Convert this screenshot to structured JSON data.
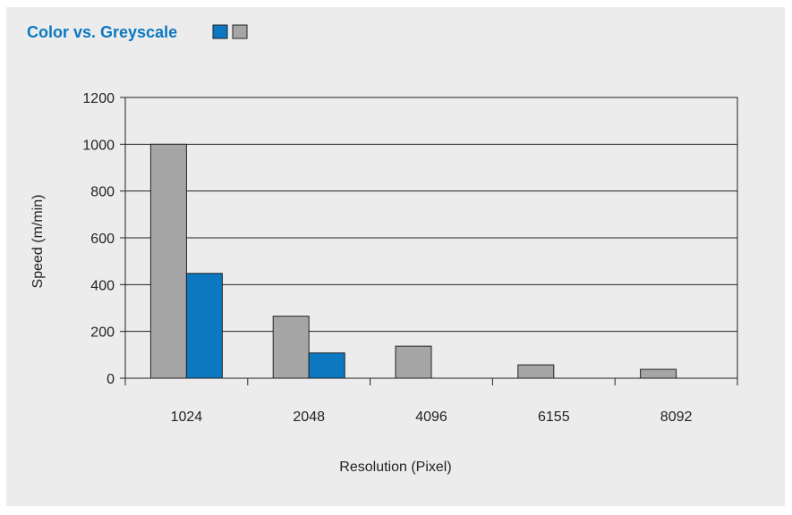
{
  "colors": {
    "panel_background": "#ececec",
    "plot_background": "#ececec",
    "title": "#0b78c1",
    "color_series": "#0b78c1",
    "greyscale_series": "#a6a6a6",
    "bar_stroke": "#222222",
    "grid": "#222222"
  },
  "chart_data": {
    "type": "bar",
    "title": "Color vs. Greyscale",
    "xlabel": "Resolution (Pixel)",
    "ylabel": "Speed (m/min)",
    "categories": [
      "1024",
      "2048",
      "4096",
      "6155",
      "8092"
    ],
    "series": [
      {
        "color": "#a6a6a6",
        "values": [
          1000,
          265,
          137,
          57,
          38
        ]
      },
      {
        "color": "#0b78c1",
        "values": [
          448,
          108,
          null,
          null,
          null
        ]
      }
    ],
    "ylim": [
      0,
      1200
    ],
    "yticks": [
      0,
      200,
      400,
      600,
      800,
      1000,
      1200
    ],
    "grid": true,
    "legend": "top-left, color swatches beside title"
  }
}
